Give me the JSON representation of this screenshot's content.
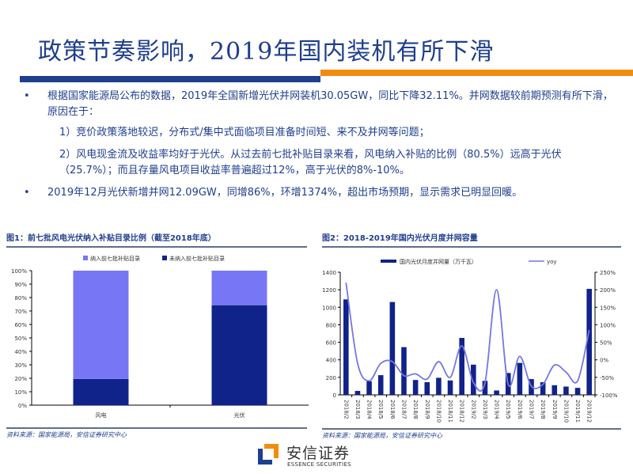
{
  "header": {
    "title": "政策节奏影响，2019年国内装机有所下滑",
    "accent_colors": {
      "primary": "#1f3f8c",
      "secondary": "#f28c0f"
    }
  },
  "bullets": [
    {
      "text": "根据国家能源局公布的数据，2019年全国新增光伏并网装机30.05GW，同比下降32.11%。并网数据较前期预测有所下滑，原因在于：",
      "sub": [
        "1）竞价政策落地较迟，分布式/集中式面临项目准备时间短、来不及并网等问题；",
        "2）风电现金流及收益率均好于光伏。从过去前七批补贴目录来看，风电纳入补贴的比例（80.5%）远高于光伏（25.7%）；而且存量风电项目收益率普遍超过12%，高于光伏的8%-10%。"
      ]
    },
    {
      "text": "2019年12月光伏新增并网12.09GW，同增86%，环增1374%，超出市场预期，显示需求已明显回暖。",
      "sub": []
    }
  ],
  "bullet_symbol": "•",
  "chart_data": [
    {
      "type": "bar",
      "stacked": true,
      "title": "图1：前七批风电光伏纳入补贴目录比例（截至2018年底）",
      "categories": [
        "风电",
        "光伏"
      ],
      "series": [
        {
          "name": "未纳入前七批补贴目录",
          "values": [
            19.5,
            74.3
          ],
          "color": "#10238a"
        },
        {
          "name": "纳入前七批补贴目录",
          "values": [
            80.5,
            25.7
          ],
          "color": "#7777f5"
        }
      ],
      "legend_order": [
        "纳入前七批补贴目录",
        "未纳入前七批补贴目录"
      ],
      "yticks": [
        "0%",
        "10%",
        "20%",
        "30%",
        "40%",
        "50%",
        "60%",
        "70%",
        "80%",
        "90%",
        "100%"
      ],
      "ylim": [
        0,
        100
      ],
      "legend": "top",
      "source": "资料来源：国家能源局，安信证券研究中心"
    },
    {
      "type": "bar+line",
      "title": "图2：2018-2019年国内光伏月度并网容量",
      "categories": [
        "2018/2",
        "2018/3",
        "2018/4",
        "2018/5",
        "2018/6",
        "2018/7",
        "2018/8",
        "2018/9",
        "2018/10",
        "2018/11",
        "2018/12",
        "2019/2",
        "2019/3",
        "2019/4",
        "2019/5",
        "2019/6",
        "2019/7",
        "2019/8",
        "2019/9",
        "2019/10",
        "2019/11",
        "2019/12"
      ],
      "series": [
        {
          "name": "国内光伏月度并网量（万千瓦）",
          "type": "bar",
          "axis": "left",
          "color": "#10238a",
          "values": [
            1090,
            45,
            155,
            225,
            1060,
            545,
            170,
            145,
            195,
            165,
            650,
            345,
            160,
            50,
            250,
            365,
            180,
            145,
            110,
            95,
            80,
            1210
          ]
        },
        {
          "name": "yoy",
          "type": "line",
          "axis": "right",
          "color": "#7777e0",
          "values": [
            220,
            -10,
            -60,
            -10,
            -5,
            -45,
            -40,
            -55,
            -5,
            -50,
            40,
            -65,
            -65,
            200,
            -70,
            10,
            -75,
            -70,
            -15,
            -35,
            -60,
            85
          ]
        }
      ],
      "yticks_left": [
        "0",
        "200",
        "400",
        "600",
        "800",
        "1000",
        "1200",
        "1400"
      ],
      "ylim_left": [
        0,
        1400
      ],
      "yticks_right": [
        "-100%",
        "-50%",
        "0%",
        "50%",
        "100%",
        "150%",
        "200%",
        "250%"
      ],
      "ylim_right": [
        -100,
        250
      ],
      "legend": "top",
      "source": "资料来源：国家能源局，安信证券研究中心"
    }
  ],
  "footer": {
    "logo_cn": "安信证券",
    "logo_en": "ESSENCE SECURITIES"
  }
}
